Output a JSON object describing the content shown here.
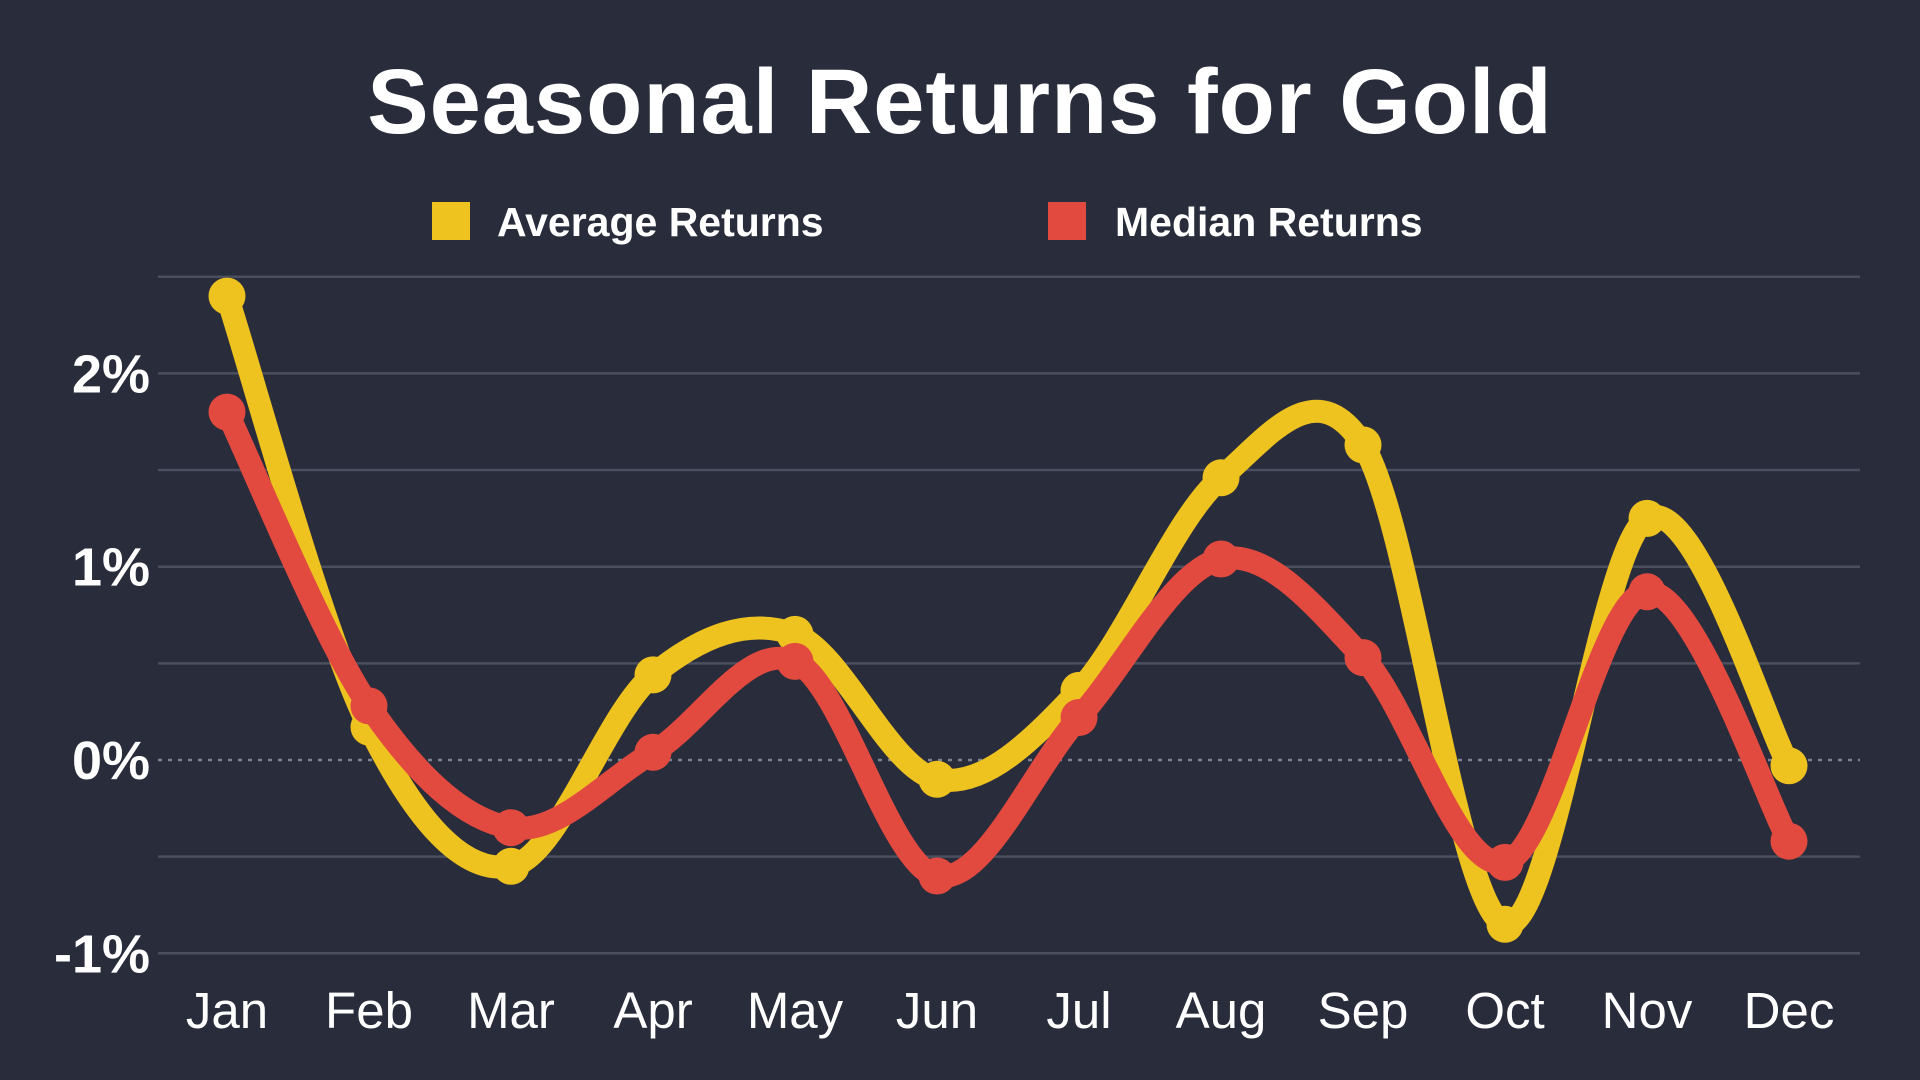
{
  "title": "Seasonal Returns for Gold",
  "legend": [
    {
      "label": "Average Returns",
      "color": "#EEC31F"
    },
    {
      "label": "Median Returns",
      "color": "#E24A3F"
    }
  ],
  "chart_data": {
    "type": "line",
    "title": "Seasonal Returns for Gold",
    "categories": [
      "Jan",
      "Feb",
      "Mar",
      "Apr",
      "May",
      "Jun",
      "Jul",
      "Aug",
      "Sep",
      "Oct",
      "Nov",
      "Dec"
    ],
    "series": [
      {
        "name": "Average Returns",
        "color": "#EEC31F",
        "values": [
          2.4,
          0.17,
          -0.55,
          0.44,
          0.65,
          -0.1,
          0.36,
          1.46,
          1.63,
          -0.85,
          1.25,
          -0.03
        ]
      },
      {
        "name": "Median Returns",
        "color": "#E24A3F",
        "values": [
          1.8,
          0.28,
          -0.35,
          0.04,
          0.51,
          -0.6,
          0.22,
          1.04,
          0.53,
          -0.53,
          0.87,
          -0.42
        ]
      }
    ],
    "xlabel": "",
    "ylabel": "",
    "y_ticks": [
      {
        "value": 2,
        "label": "2%"
      },
      {
        "value": 1,
        "label": "1%"
      },
      {
        "value": 0,
        "label": "0%"
      },
      {
        "value": -1,
        "label": "-1%"
      }
    ],
    "grid_values": [
      2.5,
      2.0,
      1.5,
      1.0,
      0.5,
      0.0,
      -0.5,
      -1.0
    ],
    "ylim": [
      -1.4,
      2.65
    ],
    "grid": "horizontal",
    "legend_position": "top",
    "background_color": "#292C3B",
    "text_color": "#FFFFFF",
    "gridline_color": "#4B4E5E",
    "zero_line_color": "#9AA0AC",
    "line_width": 23,
    "marker_radius": 18.5
  }
}
